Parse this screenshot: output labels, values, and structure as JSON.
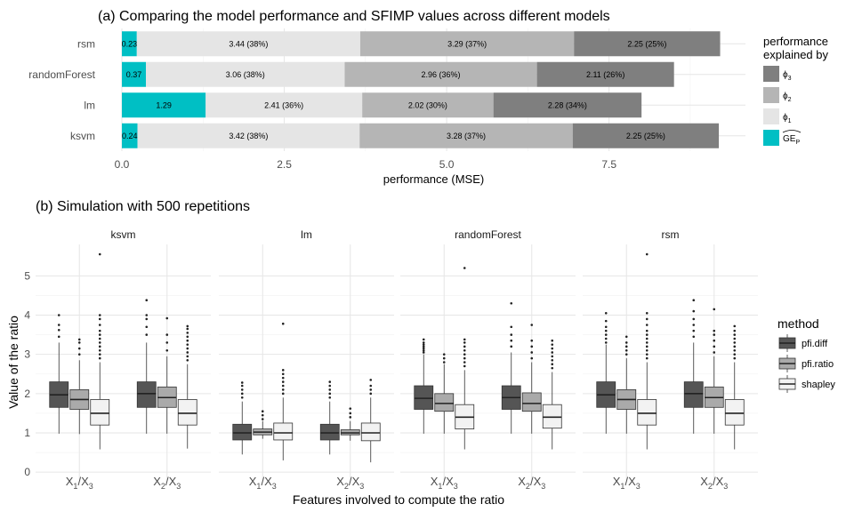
{
  "chart_data": [
    {
      "type": "bar",
      "stacked": true,
      "orientation": "horizontal",
      "title": "(a) Comparing the model performance and SFIMP values across different models",
      "xlabel": "performance (MSE)",
      "ylabel": "",
      "xlim": [
        0,
        9.6
      ],
      "x_ticks": [
        0.0,
        2.5,
        5.0,
        7.5
      ],
      "x_tick_labels": [
        "0.0",
        "2.5",
        "5.0",
        "7.5"
      ],
      "grid": true,
      "categories": [
        "rsm",
        "randomForest",
        "lm",
        "ksvm"
      ],
      "legend_title": [
        "performance",
        "explained by"
      ],
      "legend_position": "right",
      "legend": [
        {
          "sym": "ϕ",
          "sub": "3",
          "color": "#7f7f7f"
        },
        {
          "sym": "ϕ",
          "sub": "2",
          "color": "#b5b5b5"
        },
        {
          "sym": "ϕ",
          "sub": "1",
          "color": "#e5e5e5"
        },
        {
          "sym": "GE",
          "sub": "P",
          "hat": true,
          "color": "#00bfc4"
        }
      ],
      "series": [
        {
          "key": "GE_P",
          "color": "#00bfc4",
          "values": [
            0.23,
            0.37,
            1.29,
            0.24
          ],
          "labels": [
            "0.23",
            "0.37",
            "1.29",
            "0.24"
          ]
        },
        {
          "key": "phi1",
          "color": "#e5e5e5",
          "values": [
            3.44,
            3.06,
            2.41,
            3.42
          ],
          "labels": [
            "3.44 (38%)",
            "3.06 (38%)",
            "2.41 (36%)",
            "3.42 (38%)"
          ]
        },
        {
          "key": "phi2",
          "color": "#b5b5b5",
          "values": [
            3.29,
            2.96,
            2.02,
            3.28
          ],
          "labels": [
            "3.29 (37%)",
            "2.96 (36%)",
            "2.02 (30%)",
            "3.28 (37%)"
          ]
        },
        {
          "key": "phi3",
          "color": "#7f7f7f",
          "values": [
            2.25,
            2.11,
            2.28,
            2.25
          ],
          "labels": [
            "2.25 (25%)",
            "2.11 (26%)",
            "2.28 (34%)",
            "2.25 (25%)"
          ]
        }
      ]
    },
    {
      "type": "box",
      "title": "(b) Simulation with 500 repetitions",
      "xlabel": "Features involved to compute the ratio",
      "ylabel": "Value of the ratio",
      "ylim": [
        -0.2,
        5.8
      ],
      "y_ticks": [
        0,
        1,
        2,
        3,
        4,
        5
      ],
      "facets": [
        "ksvm",
        "lm",
        "randomForest",
        "rsm"
      ],
      "x_categories": [
        {
          "num": "X",
          "num_sub": "1",
          "den": "X",
          "den_sub": "3"
        },
        {
          "num": "X",
          "num_sub": "2",
          "den": "X",
          "den_sub": "3"
        }
      ],
      "legend_title": "method",
      "legend_position": "right",
      "methods": [
        {
          "name": "pfi.diff",
          "color": "#555555"
        },
        {
          "name": "pfi.ratio",
          "color": "#aaaaaa"
        },
        {
          "name": "shapley",
          "color": "#f2f2f2"
        }
      ],
      "boxes": {
        "ksvm": [
          [
            {
              "whislo": 0.98,
              "q1": 1.65,
              "med": 1.97,
              "q3": 2.3,
              "whishi": 3.3,
              "outliers": [
                3.45,
                3.62,
                3.75,
                4.0
              ]
            },
            {
              "whislo": 0.97,
              "q1": 1.6,
              "med": 1.85,
              "q3": 2.1,
              "whishi": 2.85,
              "outliers": [
                3.0,
                3.15,
                3.3,
                3.38
              ]
            },
            {
              "whislo": 0.58,
              "q1": 1.2,
              "med": 1.5,
              "q3": 1.85,
              "whishi": 2.8,
              "outliers": [
                2.9,
                3.0,
                3.1,
                3.2,
                3.3,
                3.4,
                3.5,
                3.6,
                3.75,
                3.9,
                4.0,
                5.55
              ]
            }
          ],
          [
            {
              "whislo": 0.98,
              "q1": 1.65,
              "med": 2.0,
              "q3": 2.3,
              "whishi": 3.3,
              "outliers": [
                3.5,
                3.7,
                3.9,
                4.0,
                4.38
              ]
            },
            {
              "whislo": 0.98,
              "q1": 1.65,
              "med": 1.9,
              "q3": 2.17,
              "whishi": 2.95,
              "outliers": [
                3.1,
                3.3,
                3.5,
                3.92
              ]
            },
            {
              "whislo": 0.6,
              "q1": 1.2,
              "med": 1.5,
              "q3": 1.85,
              "whishi": 2.75,
              "outliers": [
                2.85,
                2.95,
                3.05,
                3.15,
                3.25,
                3.35,
                3.45,
                3.55,
                3.65,
                3.72
              ]
            }
          ]
        ],
        "lm": [
          [
            {
              "whislo": 0.45,
              "q1": 0.82,
              "med": 1.0,
              "q3": 1.22,
              "whishi": 1.8,
              "outliers": [
                1.9,
                2.0,
                2.1,
                2.2,
                2.28
              ]
            },
            {
              "whislo": 0.85,
              "q1": 0.95,
              "med": 1.02,
              "q3": 1.1,
              "whishi": 1.3,
              "outliers": [
                1.35,
                1.45,
                1.55
              ]
            },
            {
              "whislo": 0.3,
              "q1": 0.82,
              "med": 1.0,
              "q3": 1.25,
              "whishi": 1.9,
              "outliers": [
                2.0,
                2.1,
                2.2,
                2.3,
                2.4,
                2.5,
                2.6,
                3.78
              ]
            }
          ],
          [
            {
              "whislo": 0.45,
              "q1": 0.82,
              "med": 1.0,
              "q3": 1.22,
              "whishi": 1.8,
              "outliers": [
                1.9,
                2.0,
                2.1,
                2.2,
                2.3
              ]
            },
            {
              "whislo": 0.8,
              "q1": 0.95,
              "med": 1.0,
              "q3": 1.08,
              "whishi": 1.3,
              "outliers": [
                1.4,
                1.5,
                1.62
              ]
            },
            {
              "whislo": 0.25,
              "q1": 0.8,
              "med": 1.0,
              "q3": 1.25,
              "whishi": 1.9,
              "outliers": [
                2.0,
                2.1,
                2.2,
                2.35
              ]
            }
          ]
        ],
        "randomForest": [
          [
            {
              "whislo": 0.98,
              "q1": 1.6,
              "med": 1.88,
              "q3": 2.2,
              "whishi": 3.0,
              "outliers": [
                3.05,
                3.1,
                3.15,
                3.2,
                3.25,
                3.3,
                3.38
              ]
            },
            {
              "whislo": 0.98,
              "q1": 1.55,
              "med": 1.75,
              "q3": 2.0,
              "whishi": 2.75,
              "outliers": [
                2.8,
                2.9,
                3.0
              ]
            },
            {
              "whislo": 0.58,
              "q1": 1.1,
              "med": 1.4,
              "q3": 1.72,
              "whishi": 2.6,
              "outliers": [
                2.7,
                2.8,
                2.9,
                3.0,
                3.1,
                3.2,
                3.3,
                3.38,
                5.2
              ]
            }
          ],
          [
            {
              "whislo": 0.98,
              "q1": 1.6,
              "med": 1.9,
              "q3": 2.2,
              "whishi": 3.05,
              "outliers": [
                3.2,
                3.35,
                3.5,
                3.7,
                4.3
              ]
            },
            {
              "whislo": 0.98,
              "q1": 1.55,
              "med": 1.75,
              "q3": 2.02,
              "whishi": 2.8,
              "outliers": [
                2.9,
                3.05,
                3.2,
                3.35,
                3.75
              ]
            },
            {
              "whislo": 0.58,
              "q1": 1.12,
              "med": 1.4,
              "q3": 1.72,
              "whishi": 2.55,
              "outliers": [
                2.65,
                2.75,
                2.85,
                2.95,
                3.05,
                3.15,
                3.25,
                3.35
              ]
            }
          ]
        ],
        "rsm": [
          [
            {
              "whislo": 0.98,
              "q1": 1.65,
              "med": 1.97,
              "q3": 2.3,
              "whishi": 3.25,
              "outliers": [
                3.3,
                3.4,
                3.5,
                3.6,
                3.7,
                3.85,
                4.05
              ]
            },
            {
              "whislo": 0.98,
              "q1": 1.6,
              "med": 1.85,
              "q3": 2.1,
              "whishi": 2.9,
              "outliers": [
                3.0,
                3.1,
                3.2,
                3.3,
                3.45
              ]
            },
            {
              "whislo": 0.58,
              "q1": 1.2,
              "med": 1.5,
              "q3": 1.85,
              "whishi": 2.8,
              "outliers": [
                2.9,
                3.0,
                3.1,
                3.2,
                3.3,
                3.4,
                3.5,
                3.6,
                3.75,
                3.9,
                4.05,
                5.55
              ]
            }
          ],
          [
            {
              "whislo": 0.98,
              "q1": 1.65,
              "med": 2.0,
              "q3": 2.3,
              "whishi": 3.3,
              "outliers": [
                3.45,
                3.6,
                3.75,
                3.9,
                4.1,
                4.38
              ]
            },
            {
              "whislo": 0.98,
              "q1": 1.65,
              "med": 1.9,
              "q3": 2.17,
              "whishi": 2.95,
              "outliers": [
                3.05,
                3.2,
                3.35,
                3.5,
                3.6,
                4.15
              ]
            },
            {
              "whislo": 0.58,
              "q1": 1.2,
              "med": 1.5,
              "q3": 1.85,
              "whishi": 2.8,
              "outliers": [
                2.9,
                3.0,
                3.1,
                3.2,
                3.3,
                3.4,
                3.5,
                3.6,
                3.72
              ]
            }
          ]
        ]
      }
    }
  ]
}
